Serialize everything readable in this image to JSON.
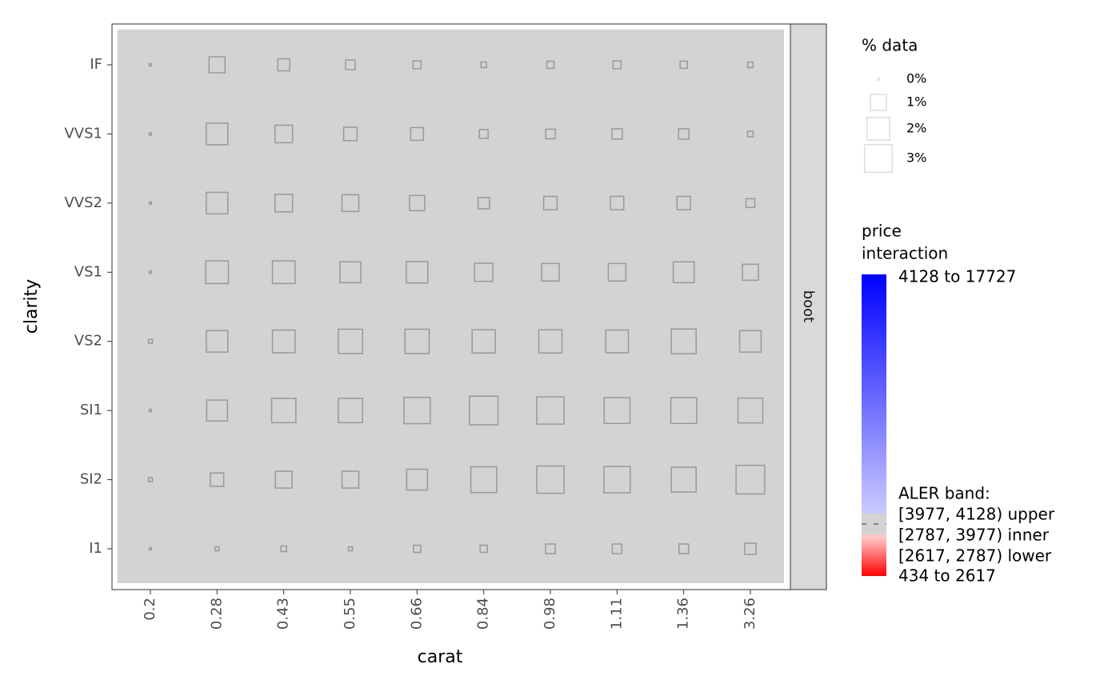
{
  "chart_data": {
    "type": "tile",
    "x_label": "carat",
    "y_label": "clarity",
    "facet": "boot",
    "categories": [
      "0.2",
      "0.28",
      "0.43",
      "0.55",
      "0.66",
      "0.84",
      "0.98",
      "1.11",
      "1.36",
      "3.26"
    ],
    "rows": [
      {
        "name": "IF",
        "values": [
          0.02,
          1.0,
          0.56,
          0.36,
          0.25,
          0.12,
          0.2,
          0.25,
          0.2,
          0.12
        ]
      },
      {
        "name": "VVS1",
        "values": [
          0.02,
          1.8,
          1.2,
          0.7,
          0.64,
          0.3,
          0.36,
          0.42,
          0.42,
          0.12
        ]
      },
      {
        "name": "VVS2",
        "values": [
          0.02,
          1.8,
          1.2,
          1.1,
          0.9,
          0.5,
          0.7,
          0.7,
          0.7,
          0.3
        ]
      },
      {
        "name": "VS1",
        "values": [
          0.02,
          2.0,
          2.0,
          1.7,
          1.8,
          1.3,
          1.2,
          1.2,
          1.7,
          1.0
        ]
      },
      {
        "name": "VS2",
        "values": [
          0.06,
          1.8,
          2.0,
          2.3,
          2.3,
          2.1,
          2.1,
          2.0,
          2.4,
          1.8
        ]
      },
      {
        "name": "SI1",
        "values": [
          0.02,
          1.7,
          2.3,
          2.3,
          2.7,
          3.2,
          2.9,
          2.6,
          2.6,
          2.4
        ]
      },
      {
        "name": "SI2",
        "values": [
          0.06,
          0.7,
          1.1,
          1.1,
          1.7,
          2.6,
          2.9,
          2.7,
          2.4,
          3.2
        ]
      },
      {
        "name": "I1",
        "values": [
          0.02,
          0.06,
          0.12,
          0.06,
          0.2,
          0.2,
          0.36,
          0.36,
          0.36,
          0.5
        ]
      }
    ],
    "square_color": "#999999",
    "size_legend": {
      "title": "% data",
      "keys": [
        {
          "value": 0,
          "label": "0%"
        },
        {
          "value": 1,
          "label": "1%"
        },
        {
          "value": 2,
          "label": "2%"
        },
        {
          "value": 3,
          "label": "3%"
        }
      ]
    },
    "color_legend": {
      "title": [
        "price",
        "interaction"
      ],
      "high_label": "4128 to 17727",
      "band_title": "ALER band:",
      "upper_label": "[3977, 4128) upper",
      "inner_label": "[2787, 3977) inner",
      "lower_label": "[2617, 2787) lower",
      "low_label": "434 to 2617",
      "colors": {
        "high": "#0000ff",
        "upper": "#c8c8ff",
        "inner": "#d3d3d3",
        "lower": "#ffc8c8",
        "low": "#ff0000"
      }
    }
  }
}
